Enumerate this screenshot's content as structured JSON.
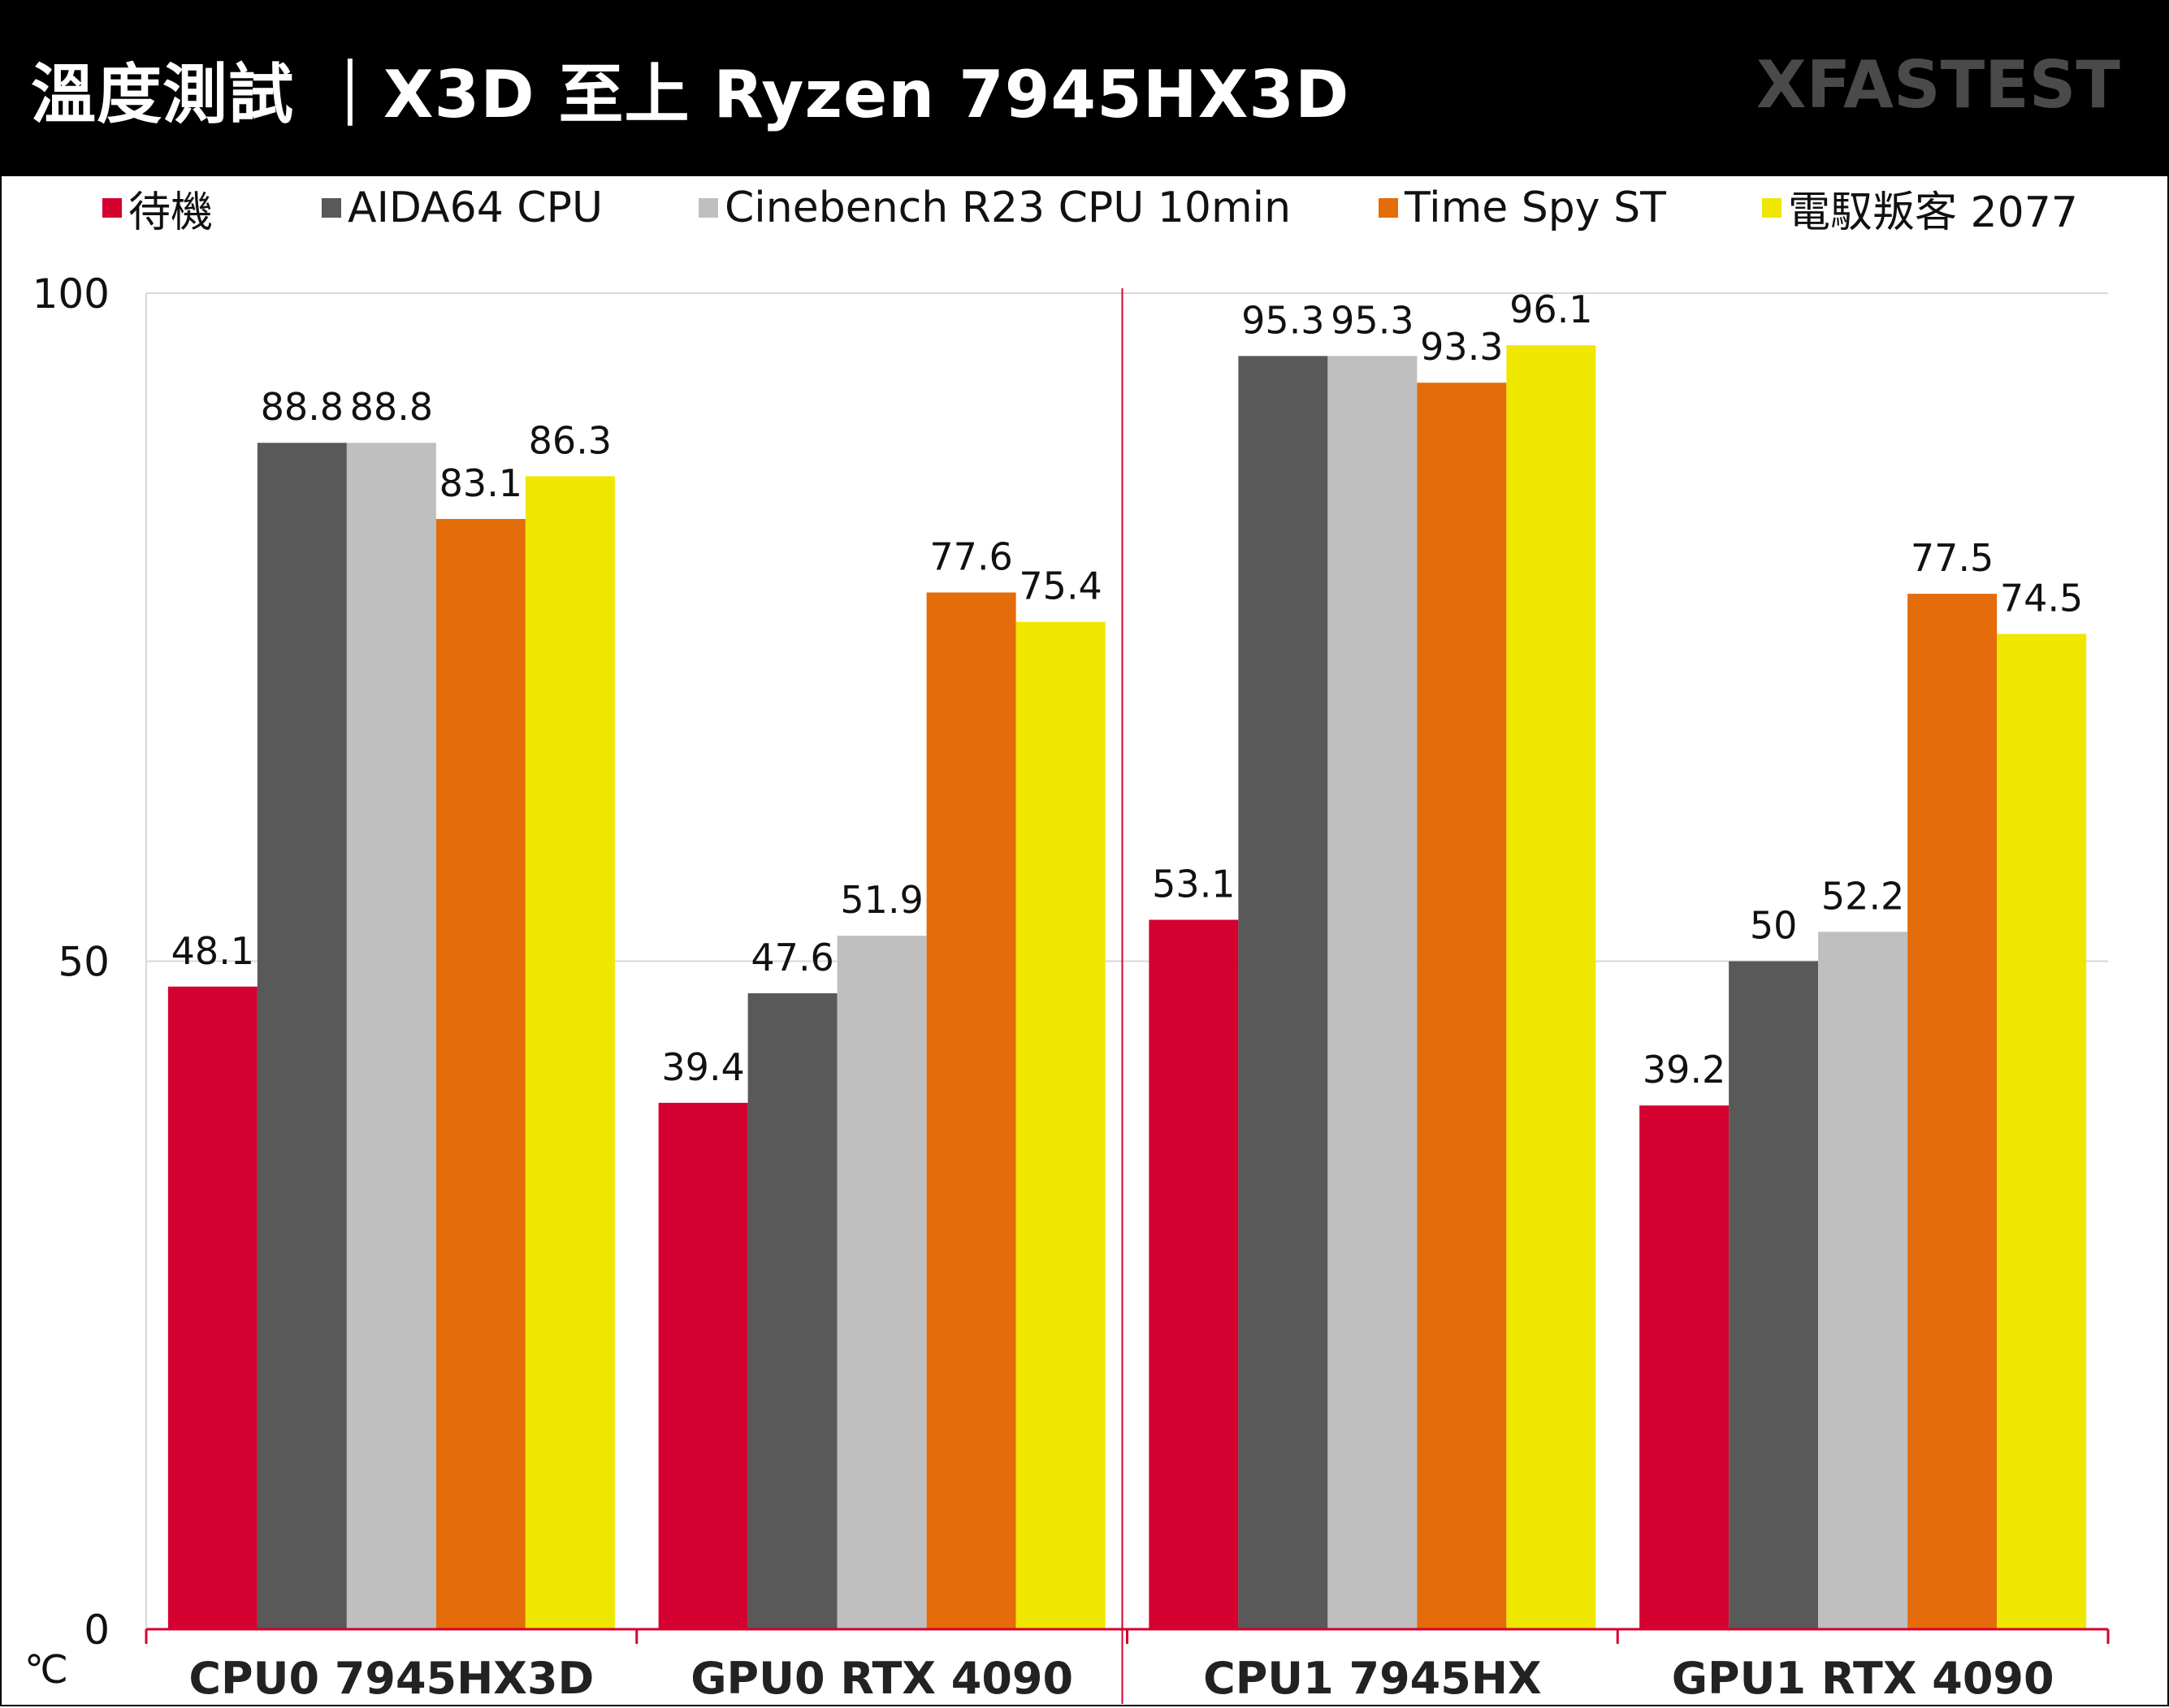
{
  "header": {
    "title": "溫度測試 ｜X3D 至上 Ryzen 7945HX3D",
    "brand": "XFASTEST"
  },
  "legend": [
    {
      "label": "待機",
      "color": "#d4002f"
    },
    {
      "label": "AIDA64 CPU",
      "color": "#595959"
    },
    {
      "label": "Cinebench R23 CPU 10min",
      "color": "#bfbfbf"
    },
    {
      "label": "Time Spy ST",
      "color": "#e46c0a"
    },
    {
      "label": "電馭叛客 2077",
      "color": "#f0e700"
    }
  ],
  "unit_label": "℃",
  "chart_data": {
    "type": "bar",
    "categories": [
      "CPU0 7945HX3D",
      "GPU0 RTX 4090",
      "CPU1 7945HX",
      "GPU1 RTX 4090"
    ],
    "series": [
      {
        "name": "待機",
        "color": "#d4002f",
        "values": [
          48.1,
          39.4,
          53.1,
          39.2
        ]
      },
      {
        "name": "AIDA64 CPU",
        "color": "#595959",
        "values": [
          88.8,
          47.6,
          95.3,
          50
        ]
      },
      {
        "name": "Cinebench R23 CPU 10min",
        "color": "#bfbfbf",
        "values": [
          88.8,
          51.9,
          95.3,
          52.2
        ]
      },
      {
        "name": "Time Spy ST",
        "color": "#e46c0a",
        "values": [
          83.1,
          77.6,
          93.3,
          77.5
        ]
      },
      {
        "name": "電馭叛客 2077",
        "color": "#f0e700",
        "values": [
          86.3,
          75.4,
          96.1,
          74.5
        ]
      }
    ],
    "ylim": [
      0,
      100
    ],
    "yticks": [
      0,
      50,
      100
    ],
    "grid": true,
    "legend_position": "top"
  }
}
